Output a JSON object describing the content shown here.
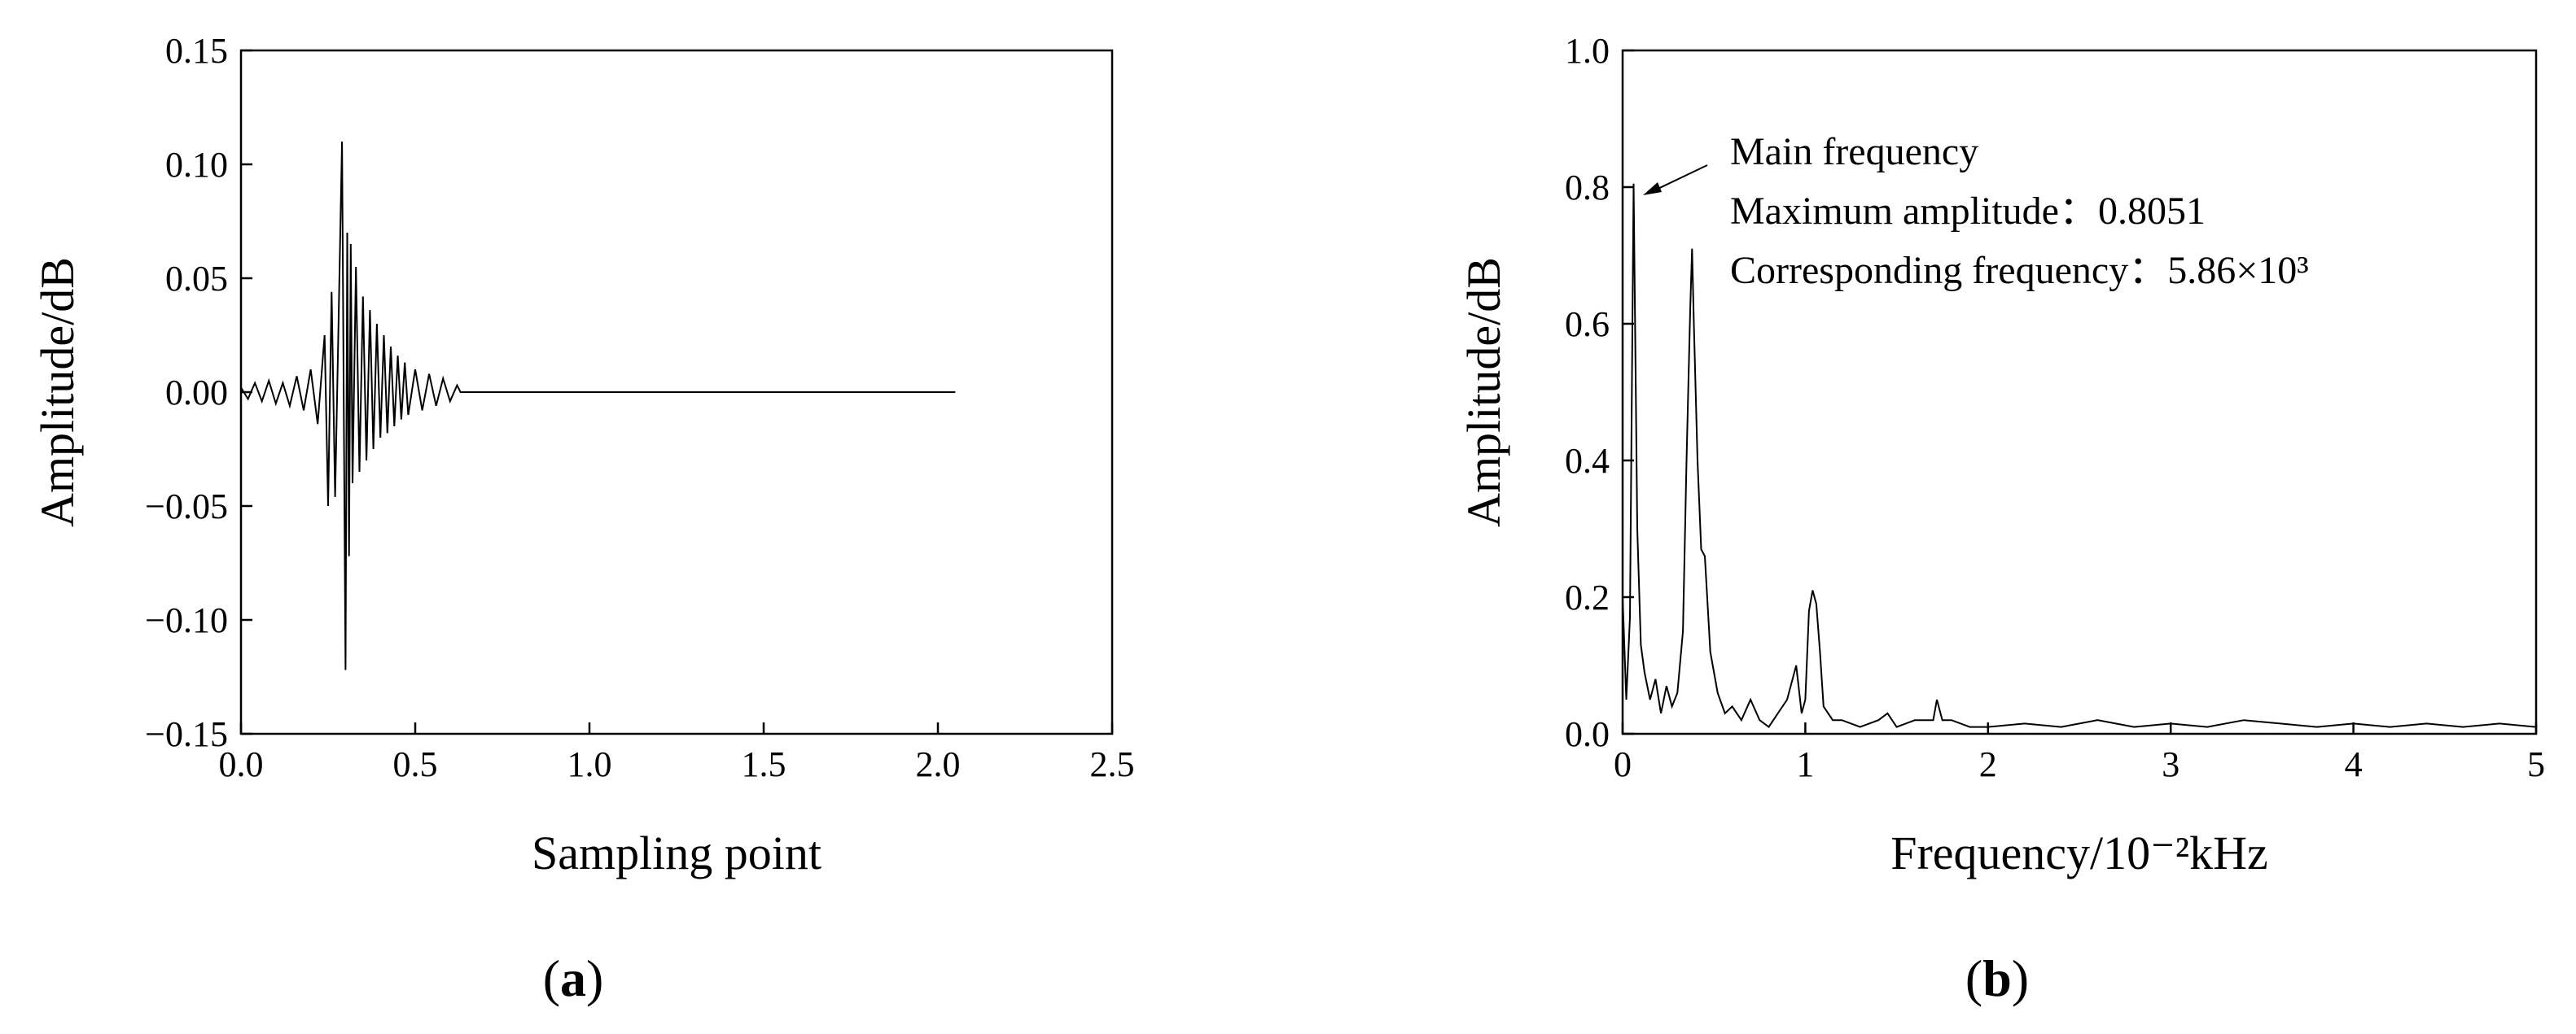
{
  "chart_data": [
    {
      "type": "line",
      "panel_label": "a",
      "xlabel": "Sampling point",
      "ylabel": "Amplitude/dB",
      "xlim": [
        0.0,
        2.5
      ],
      "ylim": [
        -0.15,
        0.15
      ],
      "xticks": [
        "0.0",
        "0.5",
        "1.0",
        "1.5",
        "2.0",
        "2.5"
      ],
      "yticks": [
        "0.15",
        "0.10",
        "0.05",
        "0.00",
        "−0.05",
        "−0.10",
        "−0.15"
      ],
      "grid": false,
      "series": [
        {
          "x": [
            0.0,
            0.02,
            0.04,
            0.06,
            0.08,
            0.1,
            0.12,
            0.14,
            0.16,
            0.18,
            0.2,
            0.22,
            0.24,
            0.25,
            0.26,
            0.27,
            0.28,
            0.29,
            0.3,
            0.305,
            0.31,
            0.315,
            0.32,
            0.33,
            0.34,
            0.35,
            0.36,
            0.37,
            0.38,
            0.39,
            0.4,
            0.41,
            0.42,
            0.43,
            0.44,
            0.45,
            0.46,
            0.47,
            0.48,
            0.5,
            0.52,
            0.54,
            0.56,
            0.58,
            0.6,
            0.62,
            0.63,
            1.0,
            1.5,
            2.05
          ],
          "y": [
            0.002,
            -0.003,
            0.004,
            -0.004,
            0.005,
            -0.005,
            0.004,
            -0.006,
            0.007,
            -0.008,
            0.01,
            -0.014,
            0.025,
            -0.05,
            0.044,
            -0.046,
            0.03,
            0.11,
            -0.122,
            0.07,
            -0.072,
            0.065,
            -0.04,
            0.055,
            -0.035,
            0.042,
            -0.03,
            0.036,
            -0.025,
            0.03,
            -0.02,
            0.025,
            -0.018,
            0.02,
            -0.015,
            0.016,
            -0.012,
            0.013,
            -0.01,
            0.01,
            -0.008,
            0.008,
            -0.006,
            0.006,
            -0.004,
            0.003,
            0.0,
            0.0,
            0.0,
            0.0
          ]
        }
      ]
    },
    {
      "type": "line",
      "panel_label": "b",
      "xlabel": "Frequency/10⁻²kHz",
      "ylabel": "Amplitude/dB",
      "xlim": [
        0,
        5
      ],
      "ylim": [
        0.0,
        1.0
      ],
      "xticks": [
        "0",
        "1",
        "2",
        "3",
        "4",
        "5"
      ],
      "yticks": [
        "1.0",
        "0.8",
        "0.6",
        "0.4",
        "0.2",
        "0.0"
      ],
      "grid": false,
      "annotations": [
        "Main frequency",
        "Maximum amplitude：0.8051",
        "Corresponding frequency：5.86×10³"
      ],
      "series": [
        {
          "x": [
            0.0,
            0.02,
            0.04,
            0.06,
            0.08,
            0.1,
            0.12,
            0.15,
            0.18,
            0.21,
            0.24,
            0.27,
            0.3,
            0.33,
            0.35,
            0.37,
            0.38,
            0.39,
            0.41,
            0.43,
            0.45,
            0.48,
            0.52,
            0.56,
            0.6,
            0.65,
            0.7,
            0.75,
            0.8,
            0.85,
            0.9,
            0.95,
            0.98,
            1.0,
            1.02,
            1.04,
            1.06,
            1.08,
            1.1,
            1.15,
            1.2,
            1.3,
            1.4,
            1.45,
            1.5,
            1.6,
            1.7,
            1.72,
            1.75,
            1.8,
            1.9,
            2.0,
            2.2,
            2.4,
            2.6,
            2.8,
            3.0,
            3.2,
            3.4,
            3.6,
            3.8,
            4.0,
            4.2,
            4.4,
            4.6,
            4.8,
            5.0
          ],
          "y": [
            0.2,
            0.05,
            0.17,
            0.805,
            0.3,
            0.13,
            0.09,
            0.05,
            0.08,
            0.03,
            0.07,
            0.04,
            0.06,
            0.15,
            0.4,
            0.62,
            0.71,
            0.6,
            0.4,
            0.27,
            0.26,
            0.12,
            0.06,
            0.03,
            0.04,
            0.02,
            0.05,
            0.02,
            0.01,
            0.03,
            0.05,
            0.1,
            0.03,
            0.05,
            0.18,
            0.21,
            0.19,
            0.12,
            0.04,
            0.02,
            0.02,
            0.01,
            0.02,
            0.03,
            0.01,
            0.02,
            0.02,
            0.05,
            0.02,
            0.02,
            0.01,
            0.01,
            0.015,
            0.01,
            0.02,
            0.01,
            0.015,
            0.01,
            0.02,
            0.015,
            0.01,
            0.015,
            0.01,
            0.015,
            0.01,
            0.015,
            0.01
          ]
        }
      ]
    }
  ]
}
